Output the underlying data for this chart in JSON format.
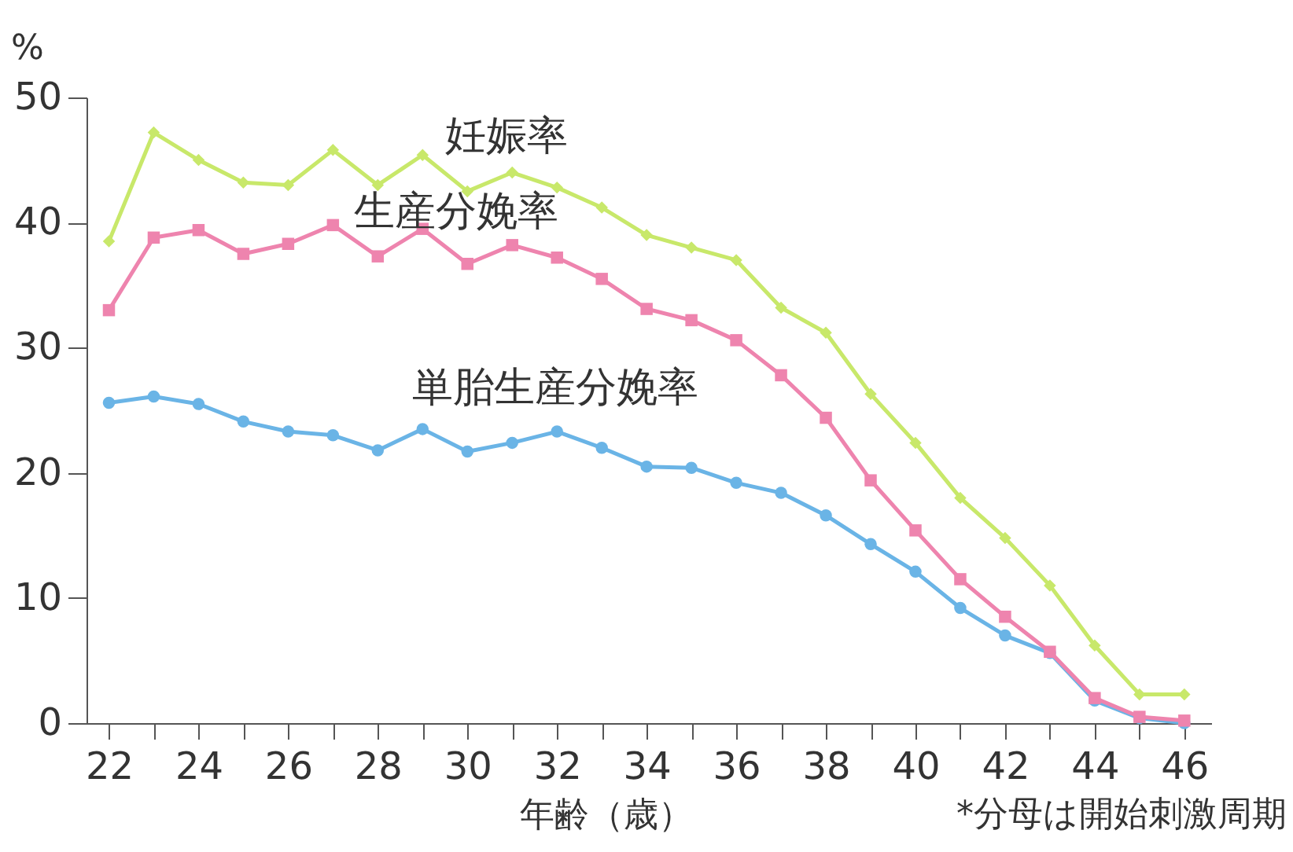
{
  "chart_data": {
    "type": "line",
    "ylabel": "%",
    "xlabel": "年齢（歳）",
    "annotations": [
      "*分母は開始刺激周期"
    ],
    "x": [
      22,
      23,
      24,
      25,
      26,
      27,
      28,
      29,
      30,
      31,
      32,
      33,
      34,
      35,
      36,
      37,
      38,
      39,
      40,
      41,
      42,
      43,
      44,
      45,
      46
    ],
    "series": [
      {
        "name": "妊娠率",
        "color": "#c8e86a",
        "marker": "diamond",
        "values": [
          38.5,
          47.2,
          45,
          43.2,
          43,
          45.8,
          43,
          45.4,
          42.5,
          44,
          42.8,
          41.2,
          39,
          38,
          37,
          33.2,
          31.2,
          26.3,
          22.4,
          18,
          14.8,
          11,
          6.2,
          2.3,
          2.3
        ]
      },
      {
        "name": "生産分娩率",
        "color": "#ee84ae",
        "marker": "square",
        "values": [
          33,
          38.8,
          39.4,
          37.5,
          38.3,
          39.8,
          37.3,
          39.5,
          36.7,
          38.2,
          37.2,
          35.5,
          33.1,
          32.2,
          30.6,
          27.8,
          24.4,
          19.4,
          15.4,
          11.5,
          8.5,
          5.7,
          2,
          0.5,
          0.2
        ]
      },
      {
        "name": "単胎生産分娩率",
        "color": "#6ab4e6",
        "marker": "circle",
        "values": [
          25.6,
          26.1,
          25.5,
          24.1,
          23.3,
          23,
          21.8,
          23.5,
          21.7,
          22.4,
          23.3,
          22,
          20.5,
          20.4,
          19.2,
          18.4,
          16.6,
          14.3,
          12.1,
          9.2,
          7,
          5.6,
          1.8,
          0.4,
          0
        ]
      }
    ],
    "xlim": [
      21.5,
      46.6
    ],
    "ylim": [
      0,
      50
    ],
    "xticks": [
      22,
      {
        "value": 23,
        "label": null
      },
      24,
      {
        "value": 25,
        "label": null
      },
      26,
      {
        "value": 27,
        "label": null
      },
      28,
      {
        "value": 29,
        "label": null
      },
      30,
      {
        "value": 31,
        "label": null
      },
      32,
      {
        "value": 33,
        "label": null
      },
      34,
      {
        "value": 35,
        "label": null
      },
      36,
      {
        "value": 37,
        "label": null
      },
      38,
      {
        "value": 39,
        "label": null
      },
      40,
      {
        "value": 41,
        "label": null
      },
      42,
      {
        "value": 43,
        "label": null
      },
      44,
      {
        "value": 45,
        "label": null
      },
      46
    ],
    "yticks": [
      0,
      10,
      20,
      30,
      40,
      50
    ],
    "grid": false,
    "legend": false,
    "line_style": "solid"
  }
}
